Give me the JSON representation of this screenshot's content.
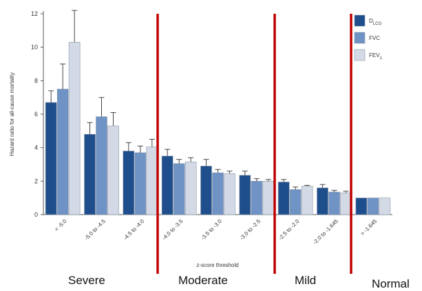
{
  "chart_data": {
    "type": "bar",
    "title": "",
    "xlabel": "z-score threshold",
    "ylabel": "Hazard ratio for all-cause mortality",
    "ylim": [
      0,
      12
    ],
    "yticks": [
      0,
      2,
      4,
      6,
      8,
      10,
      12
    ],
    "categories": [
      "< -5.0",
      "-5.0 to -4.5",
      "-4.5 to -4.0",
      "-4.0 to -3.5",
      "-3.5 to -3.0",
      "-3.0 to -2.5",
      "-2.5 to -2.0",
      "-2.0 to -1.645",
      "> -1.645"
    ],
    "legend_position": "top-right",
    "series": [
      {
        "name": "D_LCO",
        "name_main": "D",
        "name_sub": "LCO",
        "color": "#1f4e8c",
        "values": [
          6.7,
          4.8,
          3.8,
          3.5,
          2.9,
          2.35,
          1.95,
          1.6,
          1.0
        ],
        "err_high": [
          7.4,
          5.5,
          4.3,
          3.9,
          3.3,
          2.6,
          2.1,
          1.8,
          1.0
        ]
      },
      {
        "name": "FVC",
        "name_main": "FVC",
        "name_sub": "",
        "color": "#6f93c5",
        "values": [
          7.5,
          5.85,
          3.7,
          3.05,
          2.5,
          2.0,
          1.5,
          1.35,
          1.0
        ],
        "err_high": [
          9.0,
          7.0,
          4.1,
          3.3,
          2.7,
          2.15,
          1.65,
          1.45,
          1.0
        ]
      },
      {
        "name": "FEV1",
        "name_main": "FEV",
        "name_sub": "1",
        "color": "#d3dae6",
        "values": [
          10.3,
          5.3,
          4.05,
          3.15,
          2.45,
          2.0,
          1.7,
          1.3,
          1.0
        ],
        "err_high": [
          12.2,
          6.1,
          4.5,
          3.4,
          2.6,
          2.1,
          1.75,
          1.4,
          1.0
        ]
      }
    ],
    "severity_groups": [
      "Severe",
      "Moderate",
      "Mild",
      "Normal"
    ],
    "divider_color": "#c00000"
  }
}
